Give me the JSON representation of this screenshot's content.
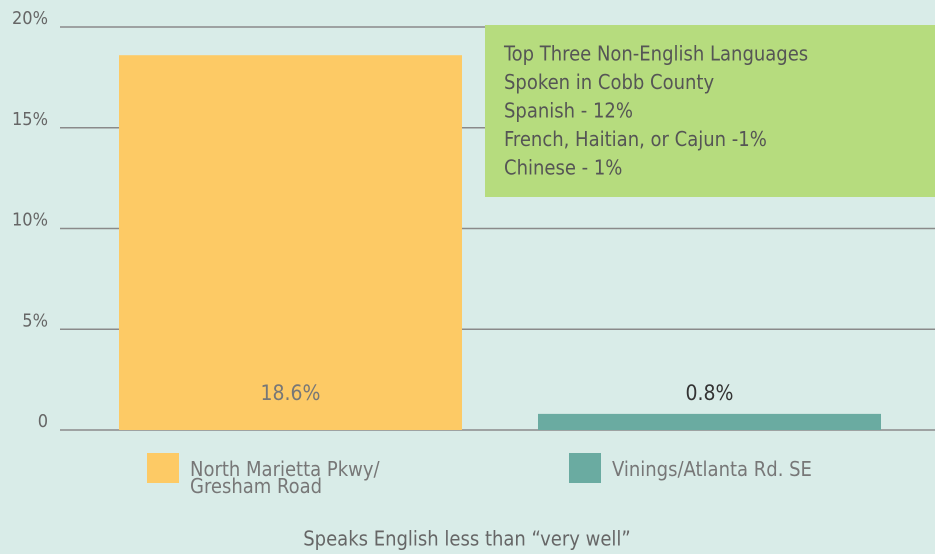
{
  "chart_data": {
    "type": "bar",
    "categories": [
      "North Marietta Pkwy/ Gresham Road",
      "Vinings/Atlanta Rd. SE"
    ],
    "values": [
      18.6,
      0.8
    ],
    "value_labels": [
      "18.6%",
      "0.8%"
    ],
    "colors": [
      "#fdca65",
      "#6aaba1"
    ],
    "x_label": "Speaks English less than “very well”",
    "ylim": [
      0,
      20
    ],
    "yticks": [
      0,
      {
        "value": 5,
        "label": "5%"
      },
      {
        "value": 10,
        "label": "10%"
      },
      {
        "value": 15,
        "label": "15%"
      },
      {
        "value": 20,
        "label": "20%"
      }
    ],
    "grid": true,
    "annotation": [
      "Top Three Non-English Languages",
      "Spoken in Cobb County",
      "Spanish - 12%",
      "French, Haitian, or Cajun -1%",
      "Chinese - 1%"
    ]
  }
}
